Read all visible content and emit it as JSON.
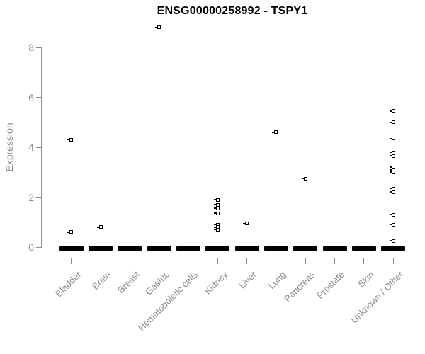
{
  "title": "ENSG00000258992 - TSPY1",
  "colors": {
    "title": "#000000",
    "axis": "#8c8c8c",
    "marker": "#000000",
    "background": "#ffffff"
  },
  "chart_data": {
    "type": "scatter",
    "style": "strip-boxplot-with-outliers",
    "title": "ENSG00000258992 - TSPY1",
    "xlabel": "",
    "ylabel": "Expression",
    "ylim": [
      0,
      8.8
    ],
    "yticks": [
      0,
      2,
      4,
      6,
      8
    ],
    "grid": false,
    "legend": null,
    "categories": [
      "Bladder",
      "Brain",
      "Breast",
      "Gastric",
      "Hematopoietic cells",
      "Kidney",
      "Liver",
      "Lung",
      "Pancreas",
      "Prostate",
      "Skin",
      "Unknown / Other"
    ],
    "median_per_category": [
      0,
      0,
      0,
      0,
      0,
      0,
      0,
      0,
      0,
      0,
      0,
      0
    ],
    "outliers_per_category": [
      [
        4.3,
        0.6
      ],
      [
        0.8
      ],
      [],
      [
        8.8
      ],
      [],
      [
        1.9,
        1.7,
        1.55,
        1.35,
        0.9,
        0.8,
        0.7
      ],
      [
        0.95
      ],
      [
        4.6
      ],
      [
        2.75
      ],
      [],
      [],
      [
        5.45,
        5.0,
        4.35,
        3.8,
        3.65,
        3.2,
        3.1,
        3.0,
        2.35,
        2.2,
        1.3,
        0.9,
        0.25
      ]
    ]
  }
}
